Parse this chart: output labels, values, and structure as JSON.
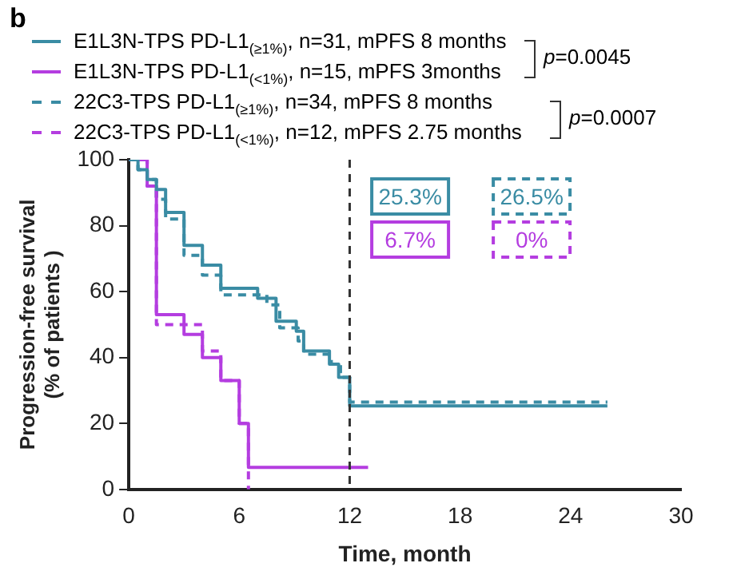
{
  "chart_data": {
    "type": "step",
    "xlabel": "Time, month",
    "ylabel": "Progression-free survival\n(% of patients )",
    "xlim": [
      0,
      30
    ],
    "xticks": [
      0,
      6,
      12,
      18,
      24,
      30
    ],
    "ylim": [
      0,
      100
    ],
    "yticks": [
      0,
      20,
      40,
      60,
      80,
      100
    ],
    "grid": false,
    "legend": "top",
    "series": [
      {
        "name": "E1L3N-TPS PD-L1$_{(≥1%)}$, n=31, mPFS 8 months",
        "color": "#3a8ca4",
        "line_style": "solid",
        "x": [
          0,
          0.5,
          1,
          1.5,
          2,
          3,
          4,
          5,
          7,
          8,
          9.1,
          9.5,
          10.9,
          11.4,
          12,
          26
        ],
        "values": [
          100,
          97,
          94,
          91,
          84,
          74,
          68,
          61,
          58,
          51,
          48,
          42,
          38,
          34,
          25.3,
          25.3
        ]
      },
      {
        "name": "E1L3N-TPS PD-L1$_{(<1%)}$, n=15, mPFS 3months",
        "color": "#b43de0",
        "line_style": "solid",
        "x": [
          0,
          1,
          1.5,
          3,
          4,
          5,
          6,
          6.5,
          13
        ],
        "values": [
          100,
          92,
          53,
          47,
          40,
          33,
          20,
          6.7,
          6.7
        ]
      },
      {
        "name": "22C3-TPS PD-L1$_{(≥1%)}$, n=34, mPFS 8 months",
        "color": "#3a8ca4",
        "line_style": "dashed",
        "x": [
          0,
          0.5,
          1,
          1.5,
          2,
          3,
          4,
          5,
          7.5,
          8.2,
          9.2,
          9.5,
          11,
          11.5,
          12,
          26
        ],
        "values": [
          100,
          97,
          94,
          88,
          82,
          71,
          65,
          59,
          56,
          49,
          45,
          41,
          38,
          34,
          26.5,
          26.5
        ]
      },
      {
        "name": "22C3-TPS PD-L1$_{(<1%)}$, n=12, mPFS 2.75 months",
        "color": "#b43de0",
        "line_style": "dashed",
        "x": [
          0,
          1,
          1.5,
          4,
          5,
          6,
          6.5
        ],
        "values": [
          100,
          92,
          50,
          42,
          33,
          20,
          0
        ]
      }
    ],
    "ref_lines": [
      {
        "axis": "x",
        "value": 12,
        "color": "#333333",
        "line_style": "dashed"
      }
    ],
    "annotations": [
      "b",
      "p=0.0045",
      "p=0.0007",
      "25.3%",
      "6.7%",
      "26.5%",
      "0%"
    ]
  }
}
